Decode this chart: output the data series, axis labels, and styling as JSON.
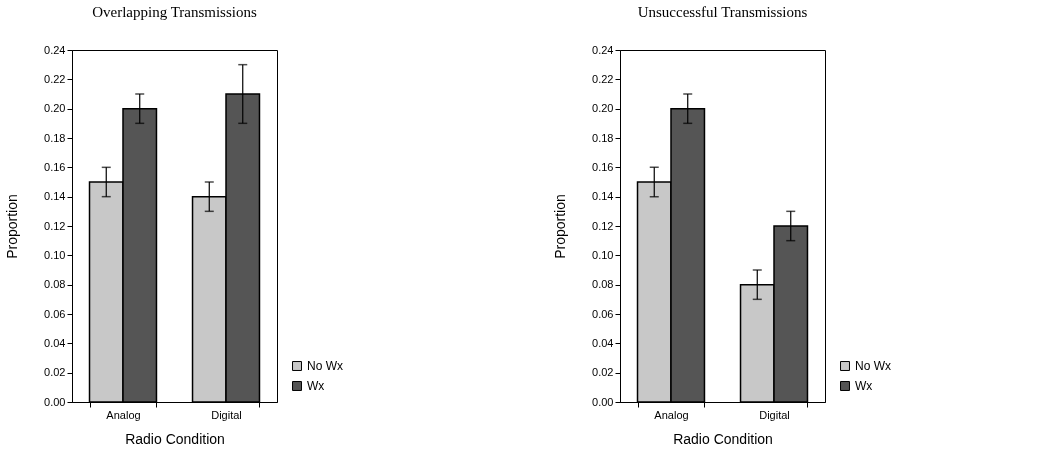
{
  "chart_data": [
    {
      "type": "bar",
      "title": "Overlapping Transmissions",
      "xlabel": "Radio Condition",
      "ylabel": "Proportion",
      "categories": [
        "Analog",
        "Digital"
      ],
      "series": [
        {
          "name": "No Wx",
          "color": "#c8c8c8",
          "values": [
            0.15,
            0.14
          ],
          "errors": [
            0.01,
            0.01
          ]
        },
        {
          "name": "Wx",
          "color": "#555555",
          "values": [
            0.2,
            0.21
          ],
          "errors": [
            0.01,
            0.02
          ]
        }
      ],
      "ylim": [
        0,
        0.24
      ],
      "yticks": [
        {
          "value": 0,
          "label": "0.00"
        },
        {
          "value": 0.02,
          "label": "0.02"
        },
        {
          "value": 0.04,
          "label": "0.04"
        },
        {
          "value": 0.06,
          "label": "0.06"
        },
        {
          "value": 0.08,
          "label": "0.08"
        },
        {
          "value": 0.1,
          "label": "0.10"
        },
        {
          "value": 0.12,
          "label": "0.12"
        },
        {
          "value": 0.14,
          "label": "0.14"
        },
        {
          "value": 0.16,
          "label": "0.16"
        },
        {
          "value": 0.18,
          "label": "0.18"
        },
        {
          "value": 0.2,
          "label": "0.20"
        },
        {
          "value": 0.22,
          "label": "0.22"
        },
        {
          "value": 0.24,
          "label": "0.24"
        }
      ],
      "legend": "right"
    },
    {
      "type": "bar",
      "title": "Unsuccessful Transmissions",
      "xlabel": "Radio Condition",
      "ylabel": "Proportion",
      "categories": [
        "Analog",
        "Digital"
      ],
      "series": [
        {
          "name": "No Wx",
          "color": "#c8c8c8",
          "values": [
            0.15,
            0.08
          ],
          "errors": [
            0.01,
            0.01
          ]
        },
        {
          "name": "Wx",
          "color": "#555555",
          "values": [
            0.2,
            0.12
          ],
          "errors": [
            0.01,
            0.01
          ]
        }
      ],
      "ylim": [
        0,
        0.24
      ],
      "yticks": [
        {
          "value": 0,
          "label": "0.00"
        },
        {
          "value": 0.02,
          "label": "0.02"
        },
        {
          "value": 0.04,
          "label": "0.04"
        },
        {
          "value": 0.06,
          "label": "0.06"
        },
        {
          "value": 0.08,
          "label": "0.08"
        },
        {
          "value": 0.1,
          "label": "0.10"
        },
        {
          "value": 0.12,
          "label": "0.12"
        },
        {
          "value": 0.14,
          "label": "0.14"
        },
        {
          "value": 0.16,
          "label": "0.16"
        },
        {
          "value": 0.18,
          "label": "0.18"
        },
        {
          "value": 0.2,
          "label": "0.20"
        },
        {
          "value": 0.22,
          "label": "0.22"
        },
        {
          "value": 0.24,
          "label": "0.24"
        }
      ],
      "legend": "right"
    }
  ]
}
